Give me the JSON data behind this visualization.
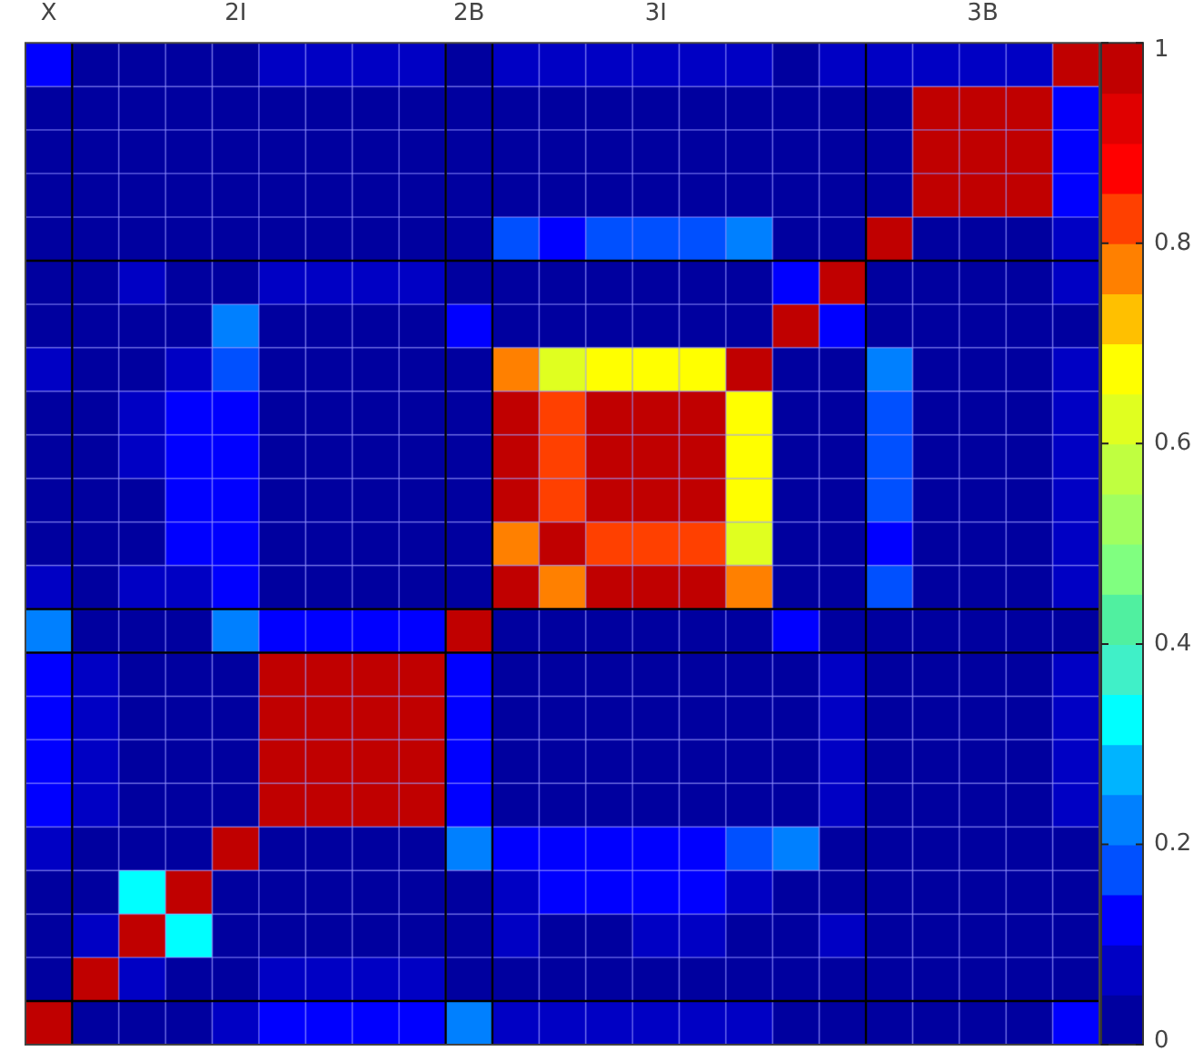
{
  "chart_data": {
    "type": "heatmap",
    "categories": [
      "X",
      null,
      null,
      null,
      "2I",
      null,
      null,
      null,
      null,
      "2B",
      null,
      null,
      null,
      "3I",
      null,
      null,
      null,
      null,
      null,
      null,
      "3B",
      null,
      null
    ],
    "y_categories": [
      null,
      null,
      null,
      null,
      null,
      null,
      null,
      null,
      null,
      null,
      null,
      null,
      null,
      null,
      null,
      null,
      null,
      null,
      null,
      null,
      null,
      null,
      null
    ],
    "cells": [
      [
        0.12,
        0.02,
        0.02,
        0.02,
        0.02,
        0.07,
        0.07,
        0.07,
        0.07,
        0.02,
        0.07,
        0.07,
        0.07,
        0.07,
        0.07,
        0.07,
        0.02,
        0.07,
        0.07,
        0.07,
        0.07,
        0.07,
        0.97
      ],
      [
        0.02,
        0.02,
        0.02,
        0.02,
        0.02,
        0.02,
        0.02,
        0.02,
        0.02,
        0.02,
        0.02,
        0.02,
        0.02,
        0.02,
        0.02,
        0.02,
        0.02,
        0.02,
        0.02,
        0.97,
        0.97,
        0.97,
        0.12
      ],
      [
        0.02,
        0.02,
        0.02,
        0.02,
        0.02,
        0.02,
        0.02,
        0.02,
        0.02,
        0.02,
        0.02,
        0.02,
        0.02,
        0.02,
        0.02,
        0.02,
        0.02,
        0.02,
        0.02,
        0.97,
        0.97,
        0.97,
        0.12
      ],
      [
        0.02,
        0.02,
        0.02,
        0.02,
        0.02,
        0.02,
        0.02,
        0.02,
        0.02,
        0.02,
        0.02,
        0.02,
        0.02,
        0.02,
        0.02,
        0.02,
        0.02,
        0.02,
        0.02,
        0.97,
        0.97,
        0.97,
        0.12
      ],
      [
        0.02,
        0.02,
        0.02,
        0.02,
        0.02,
        0.02,
        0.02,
        0.02,
        0.02,
        0.02,
        0.17,
        0.12,
        0.17,
        0.17,
        0.17,
        0.22,
        0.02,
        0.02,
        0.97,
        0.02,
        0.02,
        0.02,
        0.07
      ],
      [
        0.02,
        0.02,
        0.07,
        0.02,
        0.02,
        0.07,
        0.07,
        0.07,
        0.07,
        0.02,
        0.02,
        0.02,
        0.02,
        0.02,
        0.02,
        0.02,
        0.12,
        0.97,
        0.02,
        0.02,
        0.02,
        0.02,
        0.07
      ],
      [
        0.02,
        0.02,
        0.02,
        0.02,
        0.22,
        0.02,
        0.02,
        0.02,
        0.02,
        0.12,
        0.02,
        0.02,
        0.02,
        0.02,
        0.02,
        0.02,
        0.97,
        0.12,
        0.02,
        0.02,
        0.02,
        0.02,
        0.02
      ],
      [
        0.07,
        0.02,
        0.02,
        0.07,
        0.17,
        0.02,
        0.02,
        0.02,
        0.02,
        0.02,
        0.77,
        0.62,
        0.67,
        0.67,
        0.67,
        0.97,
        0.02,
        0.02,
        0.22,
        0.02,
        0.02,
        0.02,
        0.07
      ],
      [
        0.02,
        0.02,
        0.07,
        0.12,
        0.12,
        0.02,
        0.02,
        0.02,
        0.02,
        0.02,
        0.97,
        0.82,
        0.97,
        0.97,
        0.97,
        0.67,
        0.02,
        0.02,
        0.17,
        0.02,
        0.02,
        0.02,
        0.07
      ],
      [
        0.02,
        0.02,
        0.07,
        0.12,
        0.12,
        0.02,
        0.02,
        0.02,
        0.02,
        0.02,
        0.97,
        0.82,
        0.97,
        0.97,
        0.97,
        0.67,
        0.02,
        0.02,
        0.17,
        0.02,
        0.02,
        0.02,
        0.07
      ],
      [
        0.02,
        0.02,
        0.02,
        0.12,
        0.12,
        0.02,
        0.02,
        0.02,
        0.02,
        0.02,
        0.97,
        0.82,
        0.97,
        0.97,
        0.97,
        0.67,
        0.02,
        0.02,
        0.17,
        0.02,
        0.02,
        0.02,
        0.07
      ],
      [
        0.02,
        0.02,
        0.02,
        0.12,
        0.12,
        0.02,
        0.02,
        0.02,
        0.02,
        0.02,
        0.77,
        0.97,
        0.82,
        0.82,
        0.82,
        0.62,
        0.02,
        0.02,
        0.12,
        0.02,
        0.02,
        0.02,
        0.07
      ],
      [
        0.07,
        0.02,
        0.07,
        0.07,
        0.12,
        0.02,
        0.02,
        0.02,
        0.02,
        0.02,
        0.97,
        0.77,
        0.97,
        0.97,
        0.97,
        0.77,
        0.02,
        0.02,
        0.17,
        0.02,
        0.02,
        0.02,
        0.07
      ],
      [
        0.22,
        0.02,
        0.02,
        0.02,
        0.22,
        0.12,
        0.12,
        0.12,
        0.12,
        0.97,
        0.02,
        0.02,
        0.02,
        0.02,
        0.02,
        0.02,
        0.12,
        0.02,
        0.02,
        0.02,
        0.02,
        0.02,
        0.02
      ],
      [
        0.12,
        0.07,
        0.02,
        0.02,
        0.02,
        0.97,
        0.97,
        0.97,
        0.97,
        0.12,
        0.02,
        0.02,
        0.02,
        0.02,
        0.02,
        0.02,
        0.02,
        0.07,
        0.02,
        0.02,
        0.02,
        0.02,
        0.07
      ],
      [
        0.12,
        0.07,
        0.02,
        0.02,
        0.02,
        0.97,
        0.97,
        0.97,
        0.97,
        0.12,
        0.02,
        0.02,
        0.02,
        0.02,
        0.02,
        0.02,
        0.02,
        0.07,
        0.02,
        0.02,
        0.02,
        0.02,
        0.07
      ],
      [
        0.12,
        0.07,
        0.02,
        0.02,
        0.02,
        0.97,
        0.97,
        0.97,
        0.97,
        0.12,
        0.02,
        0.02,
        0.02,
        0.02,
        0.02,
        0.02,
        0.02,
        0.07,
        0.02,
        0.02,
        0.02,
        0.02,
        0.07
      ],
      [
        0.12,
        0.07,
        0.02,
        0.02,
        0.02,
        0.97,
        0.97,
        0.97,
        0.97,
        0.12,
        0.02,
        0.02,
        0.02,
        0.02,
        0.02,
        0.02,
        0.02,
        0.07,
        0.02,
        0.02,
        0.02,
        0.02,
        0.07
      ],
      [
        0.07,
        0.02,
        0.02,
        0.02,
        0.97,
        0.02,
        0.02,
        0.02,
        0.02,
        0.22,
        0.12,
        0.12,
        0.12,
        0.12,
        0.12,
        0.17,
        0.22,
        0.02,
        0.02,
        0.02,
        0.02,
        0.02,
        0.02
      ],
      [
        0.02,
        0.02,
        0.32,
        0.97,
        0.02,
        0.02,
        0.02,
        0.02,
        0.02,
        0.02,
        0.07,
        0.12,
        0.12,
        0.12,
        0.12,
        0.07,
        0.02,
        0.02,
        0.02,
        0.02,
        0.02,
        0.02,
        0.02
      ],
      [
        0.02,
        0.07,
        0.97,
        0.32,
        0.02,
        0.02,
        0.02,
        0.02,
        0.02,
        0.02,
        0.07,
        0.02,
        0.02,
        0.07,
        0.07,
        0.02,
        0.02,
        0.07,
        0.02,
        0.02,
        0.02,
        0.02,
        0.02
      ],
      [
        0.02,
        0.97,
        0.07,
        0.02,
        0.02,
        0.07,
        0.07,
        0.07,
        0.07,
        0.02,
        0.02,
        0.02,
        0.02,
        0.02,
        0.02,
        0.02,
        0.02,
        0.02,
        0.02,
        0.02,
        0.02,
        0.02,
        0.02
      ],
      [
        0.97,
        0.02,
        0.02,
        0.02,
        0.07,
        0.12,
        0.12,
        0.12,
        0.12,
        0.22,
        0.07,
        0.07,
        0.07,
        0.07,
        0.07,
        0.07,
        0.02,
        0.02,
        0.02,
        0.02,
        0.02,
        0.02,
        0.12
      ]
    ],
    "clim": [
      0,
      1
    ],
    "cticks": [
      0,
      0.2,
      0.4,
      0.6,
      0.8,
      1
    ]
  }
}
